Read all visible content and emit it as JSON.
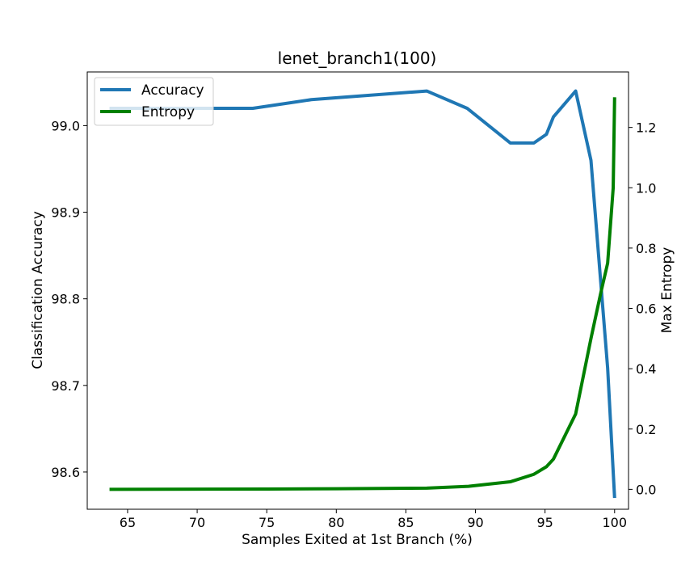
{
  "chart_data": {
    "type": "line",
    "title": "lenet_branch1(100)",
    "xlabel": "Samples Exited at 1st Branch (%)",
    "ylabel_left": "Classification Accuracy",
    "ylabel_right": "Max Entropy",
    "xlim": [
      62.1,
      101.0
    ],
    "ylim_left": [
      98.557,
      99.062
    ],
    "ylim_right": [
      -0.066,
      1.384
    ],
    "x_ticks": [
      "65",
      "70",
      "75",
      "80",
      "85",
      "90",
      "95",
      "100"
    ],
    "y_left_ticks": [
      "98.6",
      "98.7",
      "98.8",
      "98.9",
      "99.0"
    ],
    "y_right_ticks": [
      "0.0",
      "0.2",
      "0.4",
      "0.6",
      "0.8",
      "1.0",
      "1.2"
    ],
    "legend_position": "upper-left",
    "series": [
      {
        "name": "Accuracy",
        "axis": "left",
        "color": "#1f77b4",
        "x": [
          63.7,
          74.0,
          78.2,
          86.5,
          89.4,
          92.5,
          94.2,
          95.1,
          95.6,
          97.2,
          98.3,
          99.0,
          99.5,
          100.0
        ],
        "y": [
          99.02,
          99.02,
          99.03,
          99.04,
          99.02,
          98.98,
          98.98,
          98.99,
          99.01,
          99.04,
          98.96,
          98.82,
          98.72,
          98.57
        ]
      },
      {
        "name": "Entropy",
        "axis": "right",
        "color": "#008000",
        "x": [
          63.7,
          75.0,
          80.0,
          86.5,
          89.5,
          92.5,
          94.2,
          95.1,
          95.6,
          97.2,
          98.3,
          99.0,
          99.5,
          99.9,
          100.0
        ],
        "y": [
          0.0,
          0.001,
          0.002,
          0.004,
          0.01,
          0.025,
          0.05,
          0.075,
          0.1,
          0.25,
          0.5,
          0.65,
          0.75,
          1.0,
          1.3
        ]
      }
    ]
  }
}
